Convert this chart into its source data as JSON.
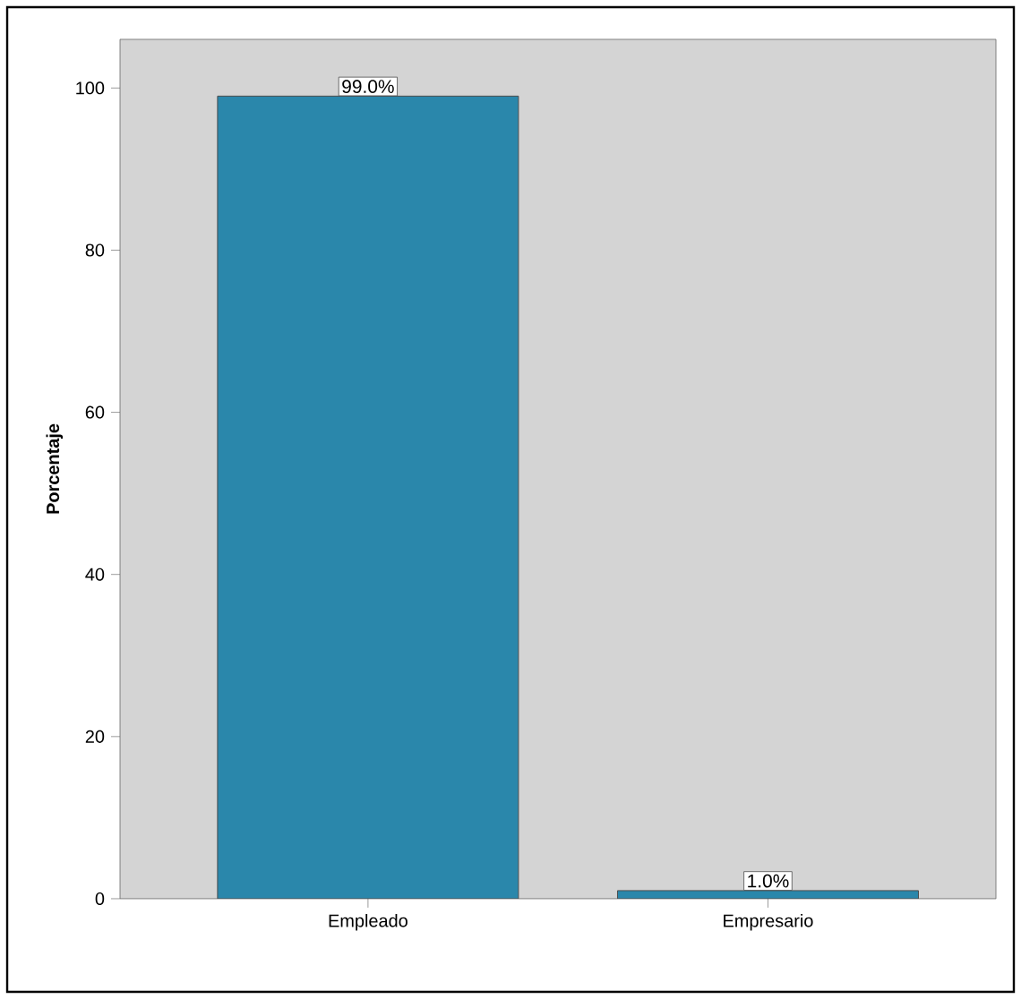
{
  "chart_data": {
    "type": "bar",
    "ylabel": "Porcentaje",
    "categories": [
      "Empleado",
      "Empresario"
    ],
    "values": [
      99.0,
      1.0
    ],
    "value_labels": [
      "99.0%",
      "1.0%"
    ],
    "color": "#2a87ab",
    "ylim": [
      0,
      106
    ],
    "yticks": [
      0,
      20,
      40,
      60,
      80,
      100
    ],
    "grid": false
  }
}
